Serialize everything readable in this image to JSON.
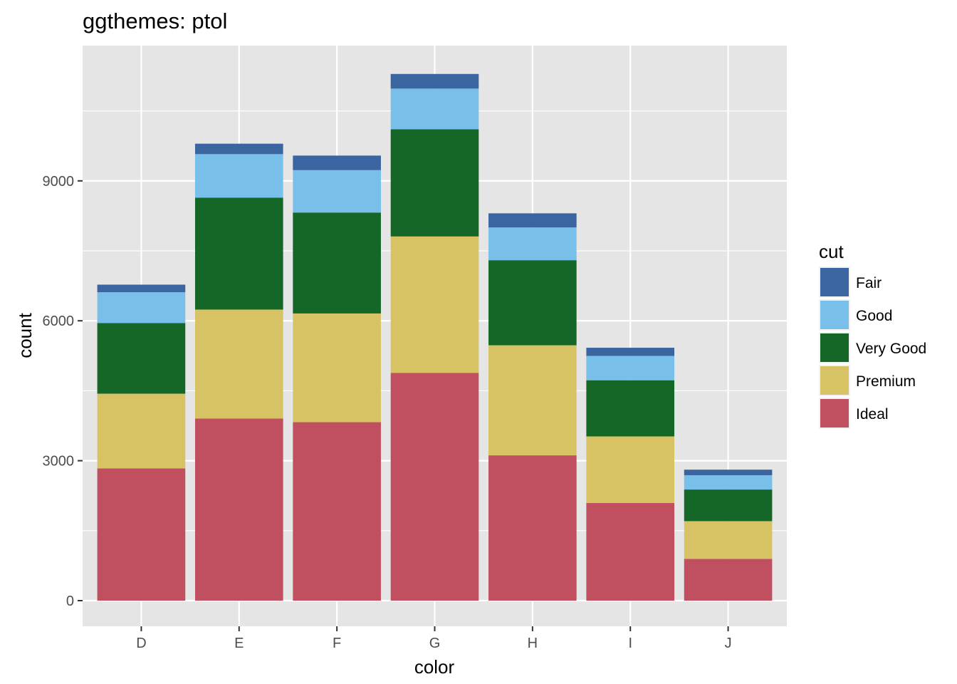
{
  "chart_data": {
    "type": "bar",
    "stacked": true,
    "title": "ggthemes: ptol",
    "xlabel": "color",
    "ylabel": "count",
    "categories": [
      "D",
      "E",
      "F",
      "G",
      "H",
      "I",
      "J"
    ],
    "ylim": [
      -550,
      11900
    ],
    "yticks": [
      0,
      3000,
      6000,
      9000
    ],
    "grid": true,
    "legend": {
      "title": "cut",
      "position": "right"
    },
    "series": [
      {
        "name": "Ideal",
        "color": "#C0505F",
        "values": [
          2834,
          3903,
          3826,
          4884,
          3115,
          2093,
          896
        ]
      },
      {
        "name": "Premium",
        "color": "#D8C364",
        "values": [
          1603,
          2337,
          2331,
          2924,
          2360,
          1428,
          808
        ]
      },
      {
        "name": "Very Good",
        "color": "#156728",
        "values": [
          1513,
          2400,
          2164,
          2299,
          1824,
          1204,
          678
        ]
      },
      {
        "name": "Good",
        "color": "#78BFEA",
        "values": [
          662,
          933,
          909,
          871,
          702,
          522,
          307
        ]
      },
      {
        "name": "Fair",
        "color": "#3A65A0",
        "values": [
          163,
          224,
          312,
          314,
          303,
          175,
          119
        ]
      }
    ]
  }
}
